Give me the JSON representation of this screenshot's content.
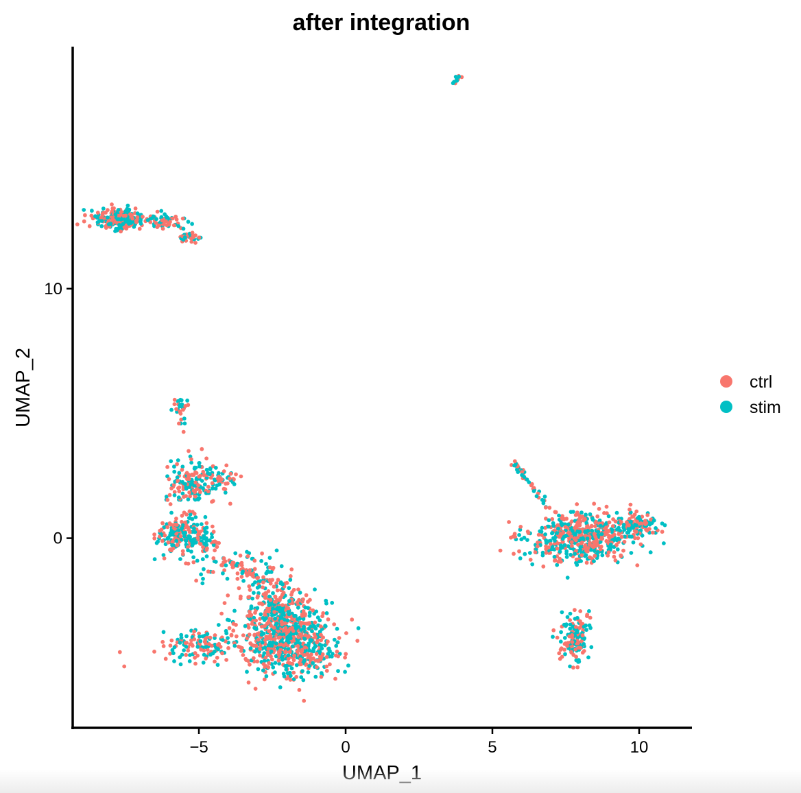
{
  "chart_data": {
    "type": "scatter",
    "title": "after integration",
    "xlabel": "UMAP_1",
    "ylabel": "UMAP_2",
    "xlim": [
      -9.3,
      11.8
    ],
    "ylim": [
      -7.6,
      19.7
    ],
    "xticks": [
      -5,
      0,
      5,
      10
    ],
    "yticks": [
      0,
      10
    ],
    "x_tick_labels": [
      "−5",
      "0",
      "5",
      "10"
    ],
    "y_tick_labels": [
      "0",
      "10"
    ],
    "grid": false,
    "legend": {
      "placement": "right",
      "entries": [
        "ctrl",
        "stim"
      ]
    },
    "series": [
      {
        "name": "ctrl",
        "color": "#F8766D"
      },
      {
        "name": "stim",
        "color": "#00BFC4"
      }
    ],
    "clusters": [
      {
        "center": [
          -2.2,
          -3.9
        ],
        "spread": [
          1.0,
          1.1
        ],
        "n": 520
      },
      {
        "center": [
          -1.3,
          -4.3
        ],
        "spread": [
          0.8,
          0.9
        ],
        "n": 220
      },
      {
        "center": [
          -2.4,
          -2.6
        ],
        "spread": [
          0.8,
          0.7
        ],
        "n": 160
      },
      {
        "center": [
          -3.6,
          -1.2
        ],
        "spread": [
          0.9,
          0.5
        ],
        "n": 60
      },
      {
        "center": [
          -5.6,
          0.1
        ],
        "spread": [
          0.55,
          0.55
        ],
        "n": 190
      },
      {
        "center": [
          -4.8,
          0.0
        ],
        "spread": [
          0.4,
          0.5
        ],
        "n": 40
      },
      {
        "center": [
          -5.2,
          2.2
        ],
        "spread": [
          0.6,
          0.55
        ],
        "n": 170
      },
      {
        "center": [
          -4.1,
          2.3
        ],
        "spread": [
          0.4,
          0.4
        ],
        "n": 35
      },
      {
        "center": [
          -5.7,
          5.3
        ],
        "spread": [
          0.25,
          0.2
        ],
        "n": 22
      },
      {
        "center": [
          -4.9,
          -4.3
        ],
        "spread": [
          0.9,
          0.4
        ],
        "n": 130
      },
      {
        "center": [
          -7.7,
          12.8
        ],
        "spread": [
          0.6,
          0.3
        ],
        "n": 230
      },
      {
        "center": [
          -6.2,
          12.7
        ],
        "spread": [
          0.55,
          0.25
        ],
        "n": 60
      },
      {
        "center": [
          -5.3,
          12.0
        ],
        "spread": [
          0.25,
          0.15
        ],
        "n": 30
      },
      {
        "center": [
          8.0,
          0.0
        ],
        "spread": [
          1.2,
          0.65
        ],
        "n": 540
      },
      {
        "center": [
          9.9,
          0.6
        ],
        "spread": [
          0.5,
          0.3
        ],
        "n": 110
      },
      {
        "center": [
          7.8,
          -4.0
        ],
        "spread": [
          0.3,
          0.7
        ],
        "n": 150
      }
    ],
    "streaks": [
      {
        "from": [
          5.7,
          3.1
        ],
        "to": [
          6.9,
          1.2
        ],
        "n": 45
      },
      {
        "from": [
          3.7,
          18.2
        ],
        "to": [
          3.9,
          18.5
        ],
        "n": 12
      },
      {
        "from": [
          -5.6,
          5.2
        ],
        "to": [
          -5.5,
          4.2
        ],
        "n": 8
      },
      {
        "from": [
          -4.2,
          -0.8
        ],
        "to": [
          -2.6,
          -1.8
        ],
        "n": 35
      }
    ]
  }
}
